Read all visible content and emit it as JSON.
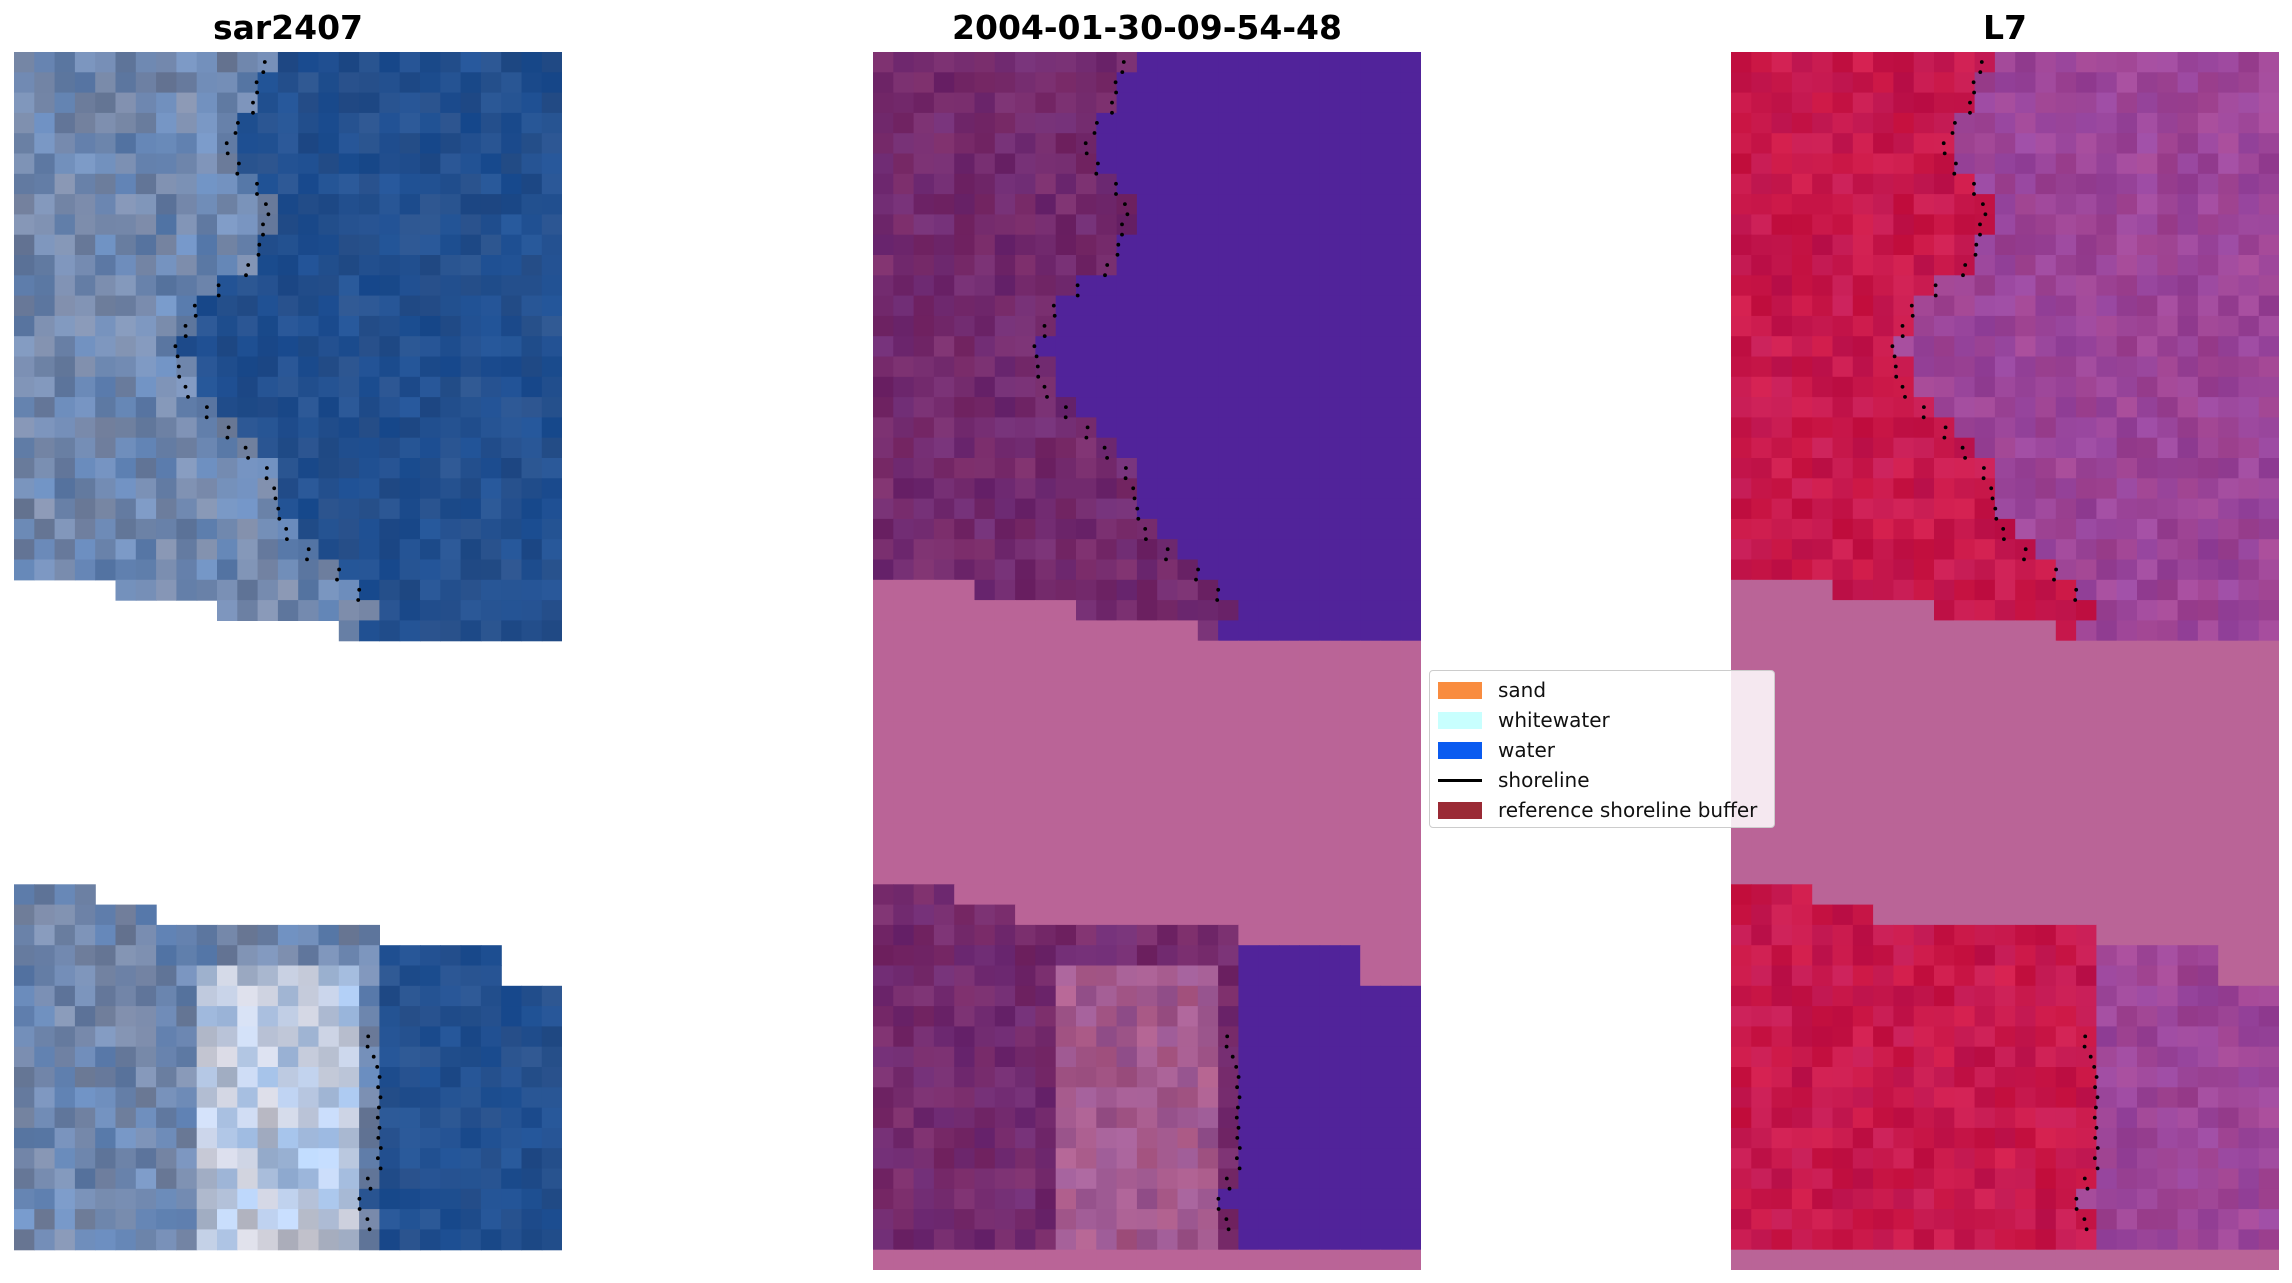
{
  "titles": {
    "panel1": "sar2407",
    "panel2": "2004-01-30-09-54-48",
    "panel3": "L7"
  },
  "legend": {
    "items": [
      {
        "label": "sand",
        "color": "#f98c3f",
        "type": "patch"
      },
      {
        "label": "whitewater",
        "color": "#c8fffe",
        "type": "patch"
      },
      {
        "label": "water",
        "color": "#0a5bf0",
        "type": "patch"
      },
      {
        "label": "shoreline",
        "color": "#000000",
        "type": "line"
      },
      {
        "label": "reference shoreline buffer",
        "color": "#9a2a35",
        "type": "patch"
      }
    ]
  },
  "colors": {
    "rgb_land": "#6f87ae",
    "rgb_water": "#23508f",
    "classified_land": "#732a6d",
    "classified_water": "#51239a",
    "nodata_pink": "#ba6497",
    "ndwi_land": "#c7184c",
    "ndwi_water": "#9c4598",
    "shoreline_points": "#000000"
  }
}
